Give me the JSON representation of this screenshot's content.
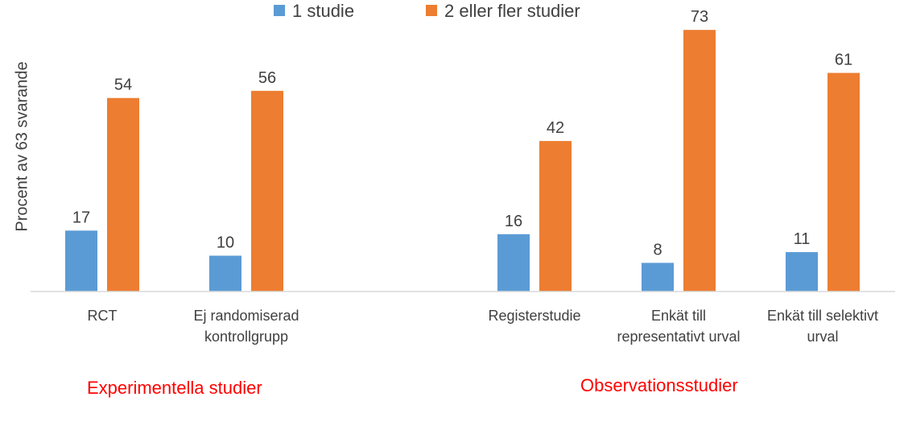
{
  "chart_data": {
    "type": "bar",
    "ylabel": "Procent av 63 svarande",
    "ylim": [
      0,
      80
    ],
    "grid": false,
    "legend_position": "top",
    "categories": [
      [
        "RCT"
      ],
      [
        "Ej randomiserad",
        "kontrollgrupp"
      ],
      [
        "Registerstudie"
      ],
      [
        "Enkät till",
        "representativt urval"
      ],
      [
        "Enkät till selektivt",
        "urval"
      ]
    ],
    "series": [
      {
        "name": "1 studie",
        "color": "#5b9bd5",
        "values": [
          17,
          10,
          16,
          8,
          11
        ]
      },
      {
        "name": "2 eller fler studier",
        "color": "#ed7d31",
        "values": [
          54,
          56,
          42,
          73,
          61
        ]
      }
    ],
    "group_labels": [
      "Experimentella studier",
      "Observationsstudier"
    ],
    "group_label_color": "#ff0000"
  }
}
